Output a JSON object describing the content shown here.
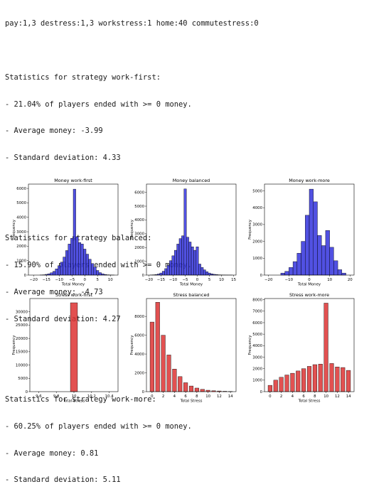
{
  "output": {
    "lines": [
      "pay:1,3 destress:1,3 workstress:1 home:40 commutestress:0",
      "",
      "Statistics for strategy work-first:",
      "- 21.04% of players ended with >= 0 money.",
      "- Average money: -3.99",
      "- Standard deviation: 4.33",
      "",
      "",
      "Statistics for strategy balanced:",
      "- 15.90% of players ended with >= 0 money.",
      "- Average money: -4.73",
      "- Standard deviation: 4.27",
      "",
      "",
      "Statistics for strategy work-more:",
      "- 60.25% of players ended with >= 0 money.",
      "- Average money: 0.81",
      "- Standard deviation: 5.11"
    ]
  },
  "chart_data": [
    {
      "type": "bar",
      "title": "Money work-first",
      "xlabel": "Total Money",
      "ylabel": "Frequency",
      "color": "#3333dd",
      "xlim": [
        -22,
        13
      ],
      "ylim": [
        0,
        6300
      ],
      "xticks": [
        -20,
        -15,
        -10,
        -5,
        0,
        5,
        10
      ],
      "yticks": [
        0,
        1000,
        2000,
        3000,
        4000,
        5000,
        6000
      ],
      "x": [
        -17,
        -16,
        -15,
        -14,
        -13,
        -12,
        -11,
        -10,
        -9,
        -8,
        -7,
        -6,
        -5,
        -4,
        -3,
        -2,
        -1,
        0,
        1,
        2,
        3,
        4,
        5,
        6,
        7,
        8,
        9,
        10,
        11
      ],
      "values": [
        10,
        20,
        50,
        90,
        160,
        260,
        430,
        650,
        900,
        1250,
        1700,
        2150,
        2550,
        5950,
        2650,
        2250,
        2150,
        1800,
        1450,
        1100,
        800,
        560,
        320,
        170,
        90,
        45,
        20,
        10,
        5
      ]
    },
    {
      "type": "bar",
      "title": "Money balanced",
      "xlabel": "Total Money",
      "ylabel": "Frequency",
      "color": "#3333dd",
      "xlim": [
        -21,
        16
      ],
      "ylim": [
        0,
        6600
      ],
      "xticks": [
        -20,
        -15,
        -10,
        -5,
        0,
        5,
        10,
        15
      ],
      "yticks": [
        0,
        1000,
        2000,
        3000,
        4000,
        5000,
        6000
      ],
      "x": [
        -19,
        -18,
        -17,
        -16,
        -15,
        -14,
        -13,
        -12,
        -11,
        -10,
        -9,
        -8,
        -7,
        -6,
        -5,
        -4,
        -3,
        -2,
        -1,
        0,
        1,
        2,
        3,
        4,
        5,
        6,
        7,
        8,
        9,
        10,
        11,
        12,
        13,
        14
      ],
      "values": [
        10,
        20,
        40,
        80,
        150,
        280,
        470,
        700,
        1050,
        1400,
        1800,
        2250,
        2650,
        2850,
        6250,
        2750,
        2400,
        2050,
        1800,
        2050,
        800,
        550,
        380,
        240,
        150,
        90,
        55,
        35,
        20,
        12,
        8,
        5,
        3,
        2
      ]
    },
    {
      "type": "bar",
      "title": "Money work-more",
      "xlabel": "Total Money",
      "ylabel": "Frequency",
      "color": "#3333dd",
      "xlim": [
        -22,
        22
      ],
      "ylim": [
        0,
        5400
      ],
      "xticks": [
        -20,
        -10,
        0,
        10,
        20
      ],
      "yticks": [
        0,
        1000,
        2000,
        3000,
        4000,
        5000
      ],
      "x": [
        -13,
        -11,
        -9,
        -7,
        -5,
        -3,
        -1,
        1,
        3,
        5,
        7,
        9,
        11,
        13,
        15,
        17
      ],
      "values": [
        120,
        220,
        450,
        800,
        1300,
        2000,
        3550,
        5100,
        4350,
        2350,
        1750,
        2650,
        1650,
        850,
        320,
        120
      ]
    },
    {
      "type": "bar",
      "title": "Stress work-first",
      "xlabel": "Total Stress",
      "ylabel": "Frequency",
      "color": "#dd3333",
      "xlim": [
        9.5,
        10.5
      ],
      "ylim": [
        0,
        35000
      ],
      "xticks": [
        9.6,
        9.8,
        10.0,
        10.2,
        10.4
      ],
      "yticks": [
        0,
        5000,
        10000,
        15000,
        20000,
        25000,
        30000
      ],
      "x": [
        10.0
      ],
      "values": [
        33400
      ]
    },
    {
      "type": "bar",
      "title": "Stress balanced",
      "xlabel": "Total Stress",
      "ylabel": "Frequency",
      "color": "#dd3333",
      "xlim": [
        -1,
        15
      ],
      "ylim": [
        0,
        9900
      ],
      "xticks": [
        0,
        2,
        4,
        6,
        8,
        10,
        12,
        14
      ],
      "yticks": [
        0,
        2000,
        4000,
        6000,
        8000
      ],
      "x": [
        0,
        1,
        2,
        3,
        4,
        5,
        6,
        7,
        8,
        9,
        10,
        11,
        12,
        13,
        14
      ],
      "values": [
        7400,
        9500,
        6000,
        3900,
        2400,
        1600,
        950,
        600,
        380,
        250,
        150,
        100,
        70,
        40,
        25
      ]
    },
    {
      "type": "bar",
      "title": "Stress work-more",
      "xlabel": "Total Stress",
      "ylabel": "Frequency",
      "color": "#dd3333",
      "xlim": [
        -1,
        15
      ],
      "ylim": [
        0,
        8100
      ],
      "xticks": [
        0,
        2,
        4,
        6,
        8,
        10,
        12,
        14
      ],
      "yticks": [
        0,
        1000,
        2000,
        3000,
        4000,
        5000,
        6000,
        7000,
        8000
      ],
      "x": [
        0,
        1,
        2,
        3,
        4,
        5,
        6,
        7,
        8,
        9,
        10,
        11,
        12,
        13,
        14
      ],
      "values": [
        550,
        1000,
        1250,
        1450,
        1600,
        1800,
        2000,
        2200,
        2350,
        2400,
        7700,
        2450,
        2150,
        2100,
        1850
      ]
    }
  ]
}
